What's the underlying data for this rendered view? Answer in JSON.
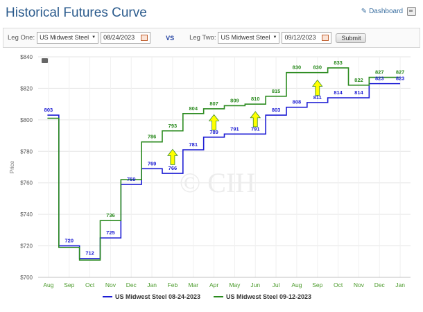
{
  "page": {
    "title": "Historical Futures Curve",
    "dashboard_label": "Dashboard"
  },
  "controls": {
    "leg_one_label": "Leg One:",
    "leg_one_product": "US Midwest Steel",
    "leg_one_date": "08/24/2023",
    "vs_label": "VS",
    "leg_two_label": "Leg Two:",
    "leg_two_product": "US Midwest Steel",
    "leg_two_date": "09/12/2023",
    "submit_label": "Submit"
  },
  "chart_data": {
    "type": "line",
    "step": true,
    "categories": [
      "Aug",
      "Sep",
      "Oct",
      "Nov",
      "Dec",
      "Jan",
      "Feb",
      "Mar",
      "Apr",
      "May",
      "Jun",
      "Jul",
      "Aug",
      "Sep",
      "Oct",
      "Nov",
      "Dec",
      "Jan"
    ],
    "tick_labels": [
      "Aug",
      "Sep",
      "Oct",
      "Nov",
      "Dec",
      "Jan",
      "Feb",
      "Mar",
      "Apr",
      "May",
      "Jun",
      "Jul",
      "Aug",
      "Sep",
      "Oct",
      "Nov",
      "Dec",
      "Jan"
    ],
    "ylabel": "Price",
    "ylim": [
      700,
      840
    ],
    "yticks": [
      "$700",
      "$720",
      "$740",
      "$760",
      "$780",
      "$800",
      "$820",
      "$840"
    ],
    "watermark": "CIH",
    "grid": true,
    "legend_position": "bottom",
    "series": [
      {
        "name": "US Midwest Steel 08-24-2023",
        "color": "#1c1cd4",
        "values": [
          803,
          720,
          712,
          725,
          759,
          769,
          766,
          781,
          789,
          791,
          791,
          803,
          808,
          811,
          814,
          814,
          823,
          823
        ],
        "labels": [
          "803",
          "720",
          "712",
          "725",
          "759",
          "769",
          "766",
          "781",
          "789",
          "791",
          "791",
          "803",
          "808",
          "811",
          "814",
          "814",
          "823",
          "823"
        ]
      },
      {
        "name": "US Midwest Steel 09-12-2023",
        "color": "#2a8a1e",
        "values": [
          801,
          719,
          711,
          736,
          762,
          786,
          793,
          804,
          807,
          809,
          810,
          815,
          830,
          830,
          833,
          822,
          827,
          827
        ],
        "labels": [
          "",
          "",
          "",
          "736",
          "",
          "786",
          "793",
          "804",
          "807",
          "809",
          "810",
          "815",
          "830",
          "830",
          "833",
          "822",
          "827",
          "827"
        ]
      }
    ],
    "annotation_arrows": [
      {
        "category_index": 6,
        "value": 776
      },
      {
        "category_index": 8,
        "value": 798
      },
      {
        "category_index": 10,
        "value": 800
      },
      {
        "category_index": 13,
        "value": 820
      }
    ],
    "arrow_color": "#ffff00"
  }
}
